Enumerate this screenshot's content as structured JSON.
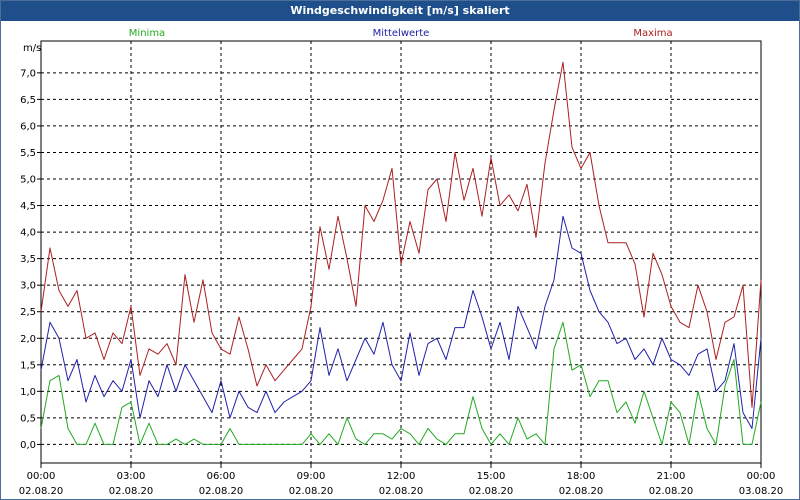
{
  "chart_data": {
    "type": "line",
    "title": "Windgeschwindigkeit [m/s] skaliert",
    "ylabel": "m/s",
    "xlabel": "",
    "ylim": [
      -0.35,
      7.6
    ],
    "xlim": [
      0,
      24
    ],
    "grid": true,
    "y_ticks": [
      "0,0",
      "0,5",
      "1,0",
      "1,5",
      "2,0",
      "2,5",
      "3,0",
      "3,5",
      "4,0",
      "4,5",
      "5,0",
      "5,5",
      "6,0",
      "6,5",
      "7,0"
    ],
    "y_tick_values": [
      0,
      0.5,
      1,
      1.5,
      2,
      2.5,
      3,
      3.5,
      4,
      4.5,
      5,
      5.5,
      6,
      6.5,
      7
    ],
    "x_ticks": [
      {
        "time": "00:00",
        "date": "02.08.20",
        "hour": 0
      },
      {
        "time": "03:00",
        "date": "02.08.20",
        "hour": 3
      },
      {
        "time": "06:00",
        "date": "02.08.20",
        "hour": 6
      },
      {
        "time": "09:00",
        "date": "02.08.20",
        "hour": 9
      },
      {
        "time": "12:00",
        "date": "02.08.20",
        "hour": 12
      },
      {
        "time": "15:00",
        "date": "02.08.20",
        "hour": 15
      },
      {
        "time": "18:00",
        "date": "02.08.20",
        "hour": 18
      },
      {
        "time": "21:00",
        "date": "02.08.20",
        "hour": 21
      },
      {
        "time": "00:00",
        "date": "03.08.20",
        "hour": 24
      }
    ],
    "legend": [
      {
        "label": "Minima",
        "color": "#22aa22",
        "position": "left"
      },
      {
        "label": "Mittelwerte",
        "color": "#2020aa",
        "position": "center"
      },
      {
        "label": "Maxima",
        "color": "#aa2020",
        "position": "right"
      }
    ],
    "series": [
      {
        "name": "Maxima",
        "color": "#aa2020",
        "x": [
          0,
          0.3,
          0.6,
          0.9,
          1.2,
          1.5,
          1.8,
          2.1,
          2.4,
          2.7,
          3.0,
          3.3,
          3.6,
          3.9,
          4.2,
          4.5,
          4.8,
          5.1,
          5.4,
          5.7,
          6.0,
          6.3,
          6.6,
          6.9,
          7.2,
          7.5,
          7.8,
          8.1,
          8.4,
          8.7,
          9.0,
          9.3,
          9.6,
          9.9,
          10.2,
          10.5,
          10.8,
          11.1,
          11.4,
          11.7,
          12.0,
          12.3,
          12.6,
          12.9,
          13.2,
          13.5,
          13.8,
          14.1,
          14.4,
          14.7,
          15.0,
          15.3,
          15.6,
          15.9,
          16.2,
          16.5,
          16.8,
          17.1,
          17.4,
          17.7,
          18.0,
          18.3,
          18.6,
          18.9,
          19.2,
          19.5,
          19.8,
          20.1,
          20.4,
          20.7,
          21.0,
          21.3,
          21.6,
          21.9,
          22.2,
          22.5,
          22.8,
          23.1,
          23.4,
          23.7,
          24.0
        ],
        "values": [
          2.5,
          3.7,
          2.9,
          2.6,
          2.9,
          2.0,
          2.1,
          1.6,
          2.1,
          1.9,
          2.6,
          1.3,
          1.8,
          1.7,
          1.9,
          1.5,
          3.2,
          2.3,
          3.1,
          2.1,
          1.8,
          1.7,
          2.4,
          1.8,
          1.1,
          1.5,
          1.2,
          1.4,
          1.6,
          1.8,
          2.6,
          4.1,
          3.3,
          4.3,
          3.5,
          2.6,
          4.5,
          4.2,
          4.6,
          5.2,
          3.4,
          4.2,
          3.6,
          4.8,
          5.0,
          4.2,
          5.5,
          4.6,
          5.2,
          4.3,
          5.4,
          4.5,
          4.7,
          4.4,
          4.9,
          3.9,
          5.3,
          6.3,
          7.2,
          5.6,
          5.2,
          5.5,
          4.5,
          3.8,
          3.8,
          3.8,
          3.4,
          2.4,
          3.6,
          3.2,
          2.6,
          2.3,
          2.2,
          3.0,
          2.5,
          1.6,
          2.3,
          2.4,
          3.0,
          0.7,
          3.1
        ]
      },
      {
        "name": "Mittelwerte",
        "color": "#2020aa",
        "x": [
          0,
          0.3,
          0.6,
          0.9,
          1.2,
          1.5,
          1.8,
          2.1,
          2.4,
          2.7,
          3.0,
          3.3,
          3.6,
          3.9,
          4.2,
          4.5,
          4.8,
          5.1,
          5.4,
          5.7,
          6.0,
          6.3,
          6.6,
          6.9,
          7.2,
          7.5,
          7.8,
          8.1,
          8.4,
          8.7,
          9.0,
          9.3,
          9.6,
          9.9,
          10.2,
          10.5,
          10.8,
          11.1,
          11.4,
          11.7,
          12.0,
          12.3,
          12.6,
          12.9,
          13.2,
          13.5,
          13.8,
          14.1,
          14.4,
          14.7,
          15.0,
          15.3,
          15.6,
          15.9,
          16.2,
          16.5,
          16.8,
          17.1,
          17.4,
          17.7,
          18.0,
          18.3,
          18.6,
          18.9,
          19.2,
          19.5,
          19.8,
          20.1,
          20.4,
          20.7,
          21.0,
          21.3,
          21.6,
          21.9,
          22.2,
          22.5,
          22.8,
          23.1,
          23.4,
          23.7,
          24.0
        ],
        "values": [
          1.4,
          2.3,
          2.0,
          1.2,
          1.6,
          0.8,
          1.3,
          0.9,
          1.2,
          1.0,
          1.6,
          0.5,
          1.2,
          0.9,
          1.5,
          1.0,
          1.5,
          1.2,
          0.9,
          0.6,
          1.2,
          0.5,
          1.0,
          0.7,
          0.6,
          1.0,
          0.6,
          0.8,
          0.9,
          1.0,
          1.2,
          2.2,
          1.3,
          1.8,
          1.2,
          1.6,
          2.0,
          1.7,
          2.3,
          1.5,
          1.2,
          2.1,
          1.3,
          1.9,
          2.0,
          1.6,
          2.2,
          2.2,
          2.9,
          2.4,
          1.8,
          2.3,
          1.6,
          2.6,
          2.2,
          1.8,
          2.6,
          3.1,
          4.3,
          3.7,
          3.6,
          2.9,
          2.5,
          2.3,
          1.9,
          2.0,
          1.6,
          1.8,
          1.5,
          2.0,
          1.6,
          1.5,
          1.3,
          1.7,
          1.8,
          1.0,
          1.2,
          1.9,
          0.6,
          0.3,
          2.0
        ]
      },
      {
        "name": "Minima",
        "color": "#22aa22",
        "x": [
          0,
          0.3,
          0.6,
          0.9,
          1.2,
          1.5,
          1.8,
          2.1,
          2.4,
          2.7,
          3.0,
          3.3,
          3.6,
          3.9,
          4.2,
          4.5,
          4.8,
          5.1,
          5.4,
          5.7,
          6.0,
          6.3,
          6.6,
          6.9,
          7.2,
          7.5,
          7.8,
          8.1,
          8.4,
          8.7,
          9.0,
          9.3,
          9.6,
          9.9,
          10.2,
          10.5,
          10.8,
          11.1,
          11.4,
          11.7,
          12.0,
          12.3,
          12.6,
          12.9,
          13.2,
          13.5,
          13.8,
          14.1,
          14.4,
          14.7,
          15.0,
          15.3,
          15.6,
          15.9,
          16.2,
          16.5,
          16.8,
          17.1,
          17.4,
          17.7,
          18.0,
          18.3,
          18.6,
          18.9,
          19.2,
          19.5,
          19.8,
          20.1,
          20.4,
          20.7,
          21.0,
          21.3,
          21.6,
          21.9,
          22.2,
          22.5,
          22.8,
          23.1,
          23.4,
          23.7,
          24.0
        ],
        "values": [
          0.3,
          1.2,
          1.3,
          0.3,
          0.0,
          0.0,
          0.4,
          0.0,
          0.0,
          0.7,
          0.8,
          0.0,
          0.4,
          0.0,
          0.0,
          0.1,
          0.0,
          0.1,
          0.0,
          0.0,
          0.0,
          0.3,
          0.0,
          0.0,
          0.0,
          0.0,
          0.0,
          0.0,
          0.0,
          0.0,
          0.2,
          0.0,
          0.2,
          0.0,
          0.5,
          0.1,
          0.0,
          0.2,
          0.2,
          0.1,
          0.3,
          0.2,
          0.0,
          0.3,
          0.1,
          0.0,
          0.2,
          0.2,
          0.9,
          0.3,
          0.0,
          0.2,
          0.0,
          0.5,
          0.1,
          0.2,
          0.0,
          1.8,
          2.3,
          1.4,
          1.5,
          0.9,
          1.2,
          1.2,
          0.6,
          0.8,
          0.4,
          1.0,
          0.5,
          0.0,
          0.8,
          0.6,
          0.0,
          1.0,
          0.3,
          0.0,
          1.1,
          1.6,
          0.0,
          0.0,
          0.8
        ]
      }
    ]
  }
}
